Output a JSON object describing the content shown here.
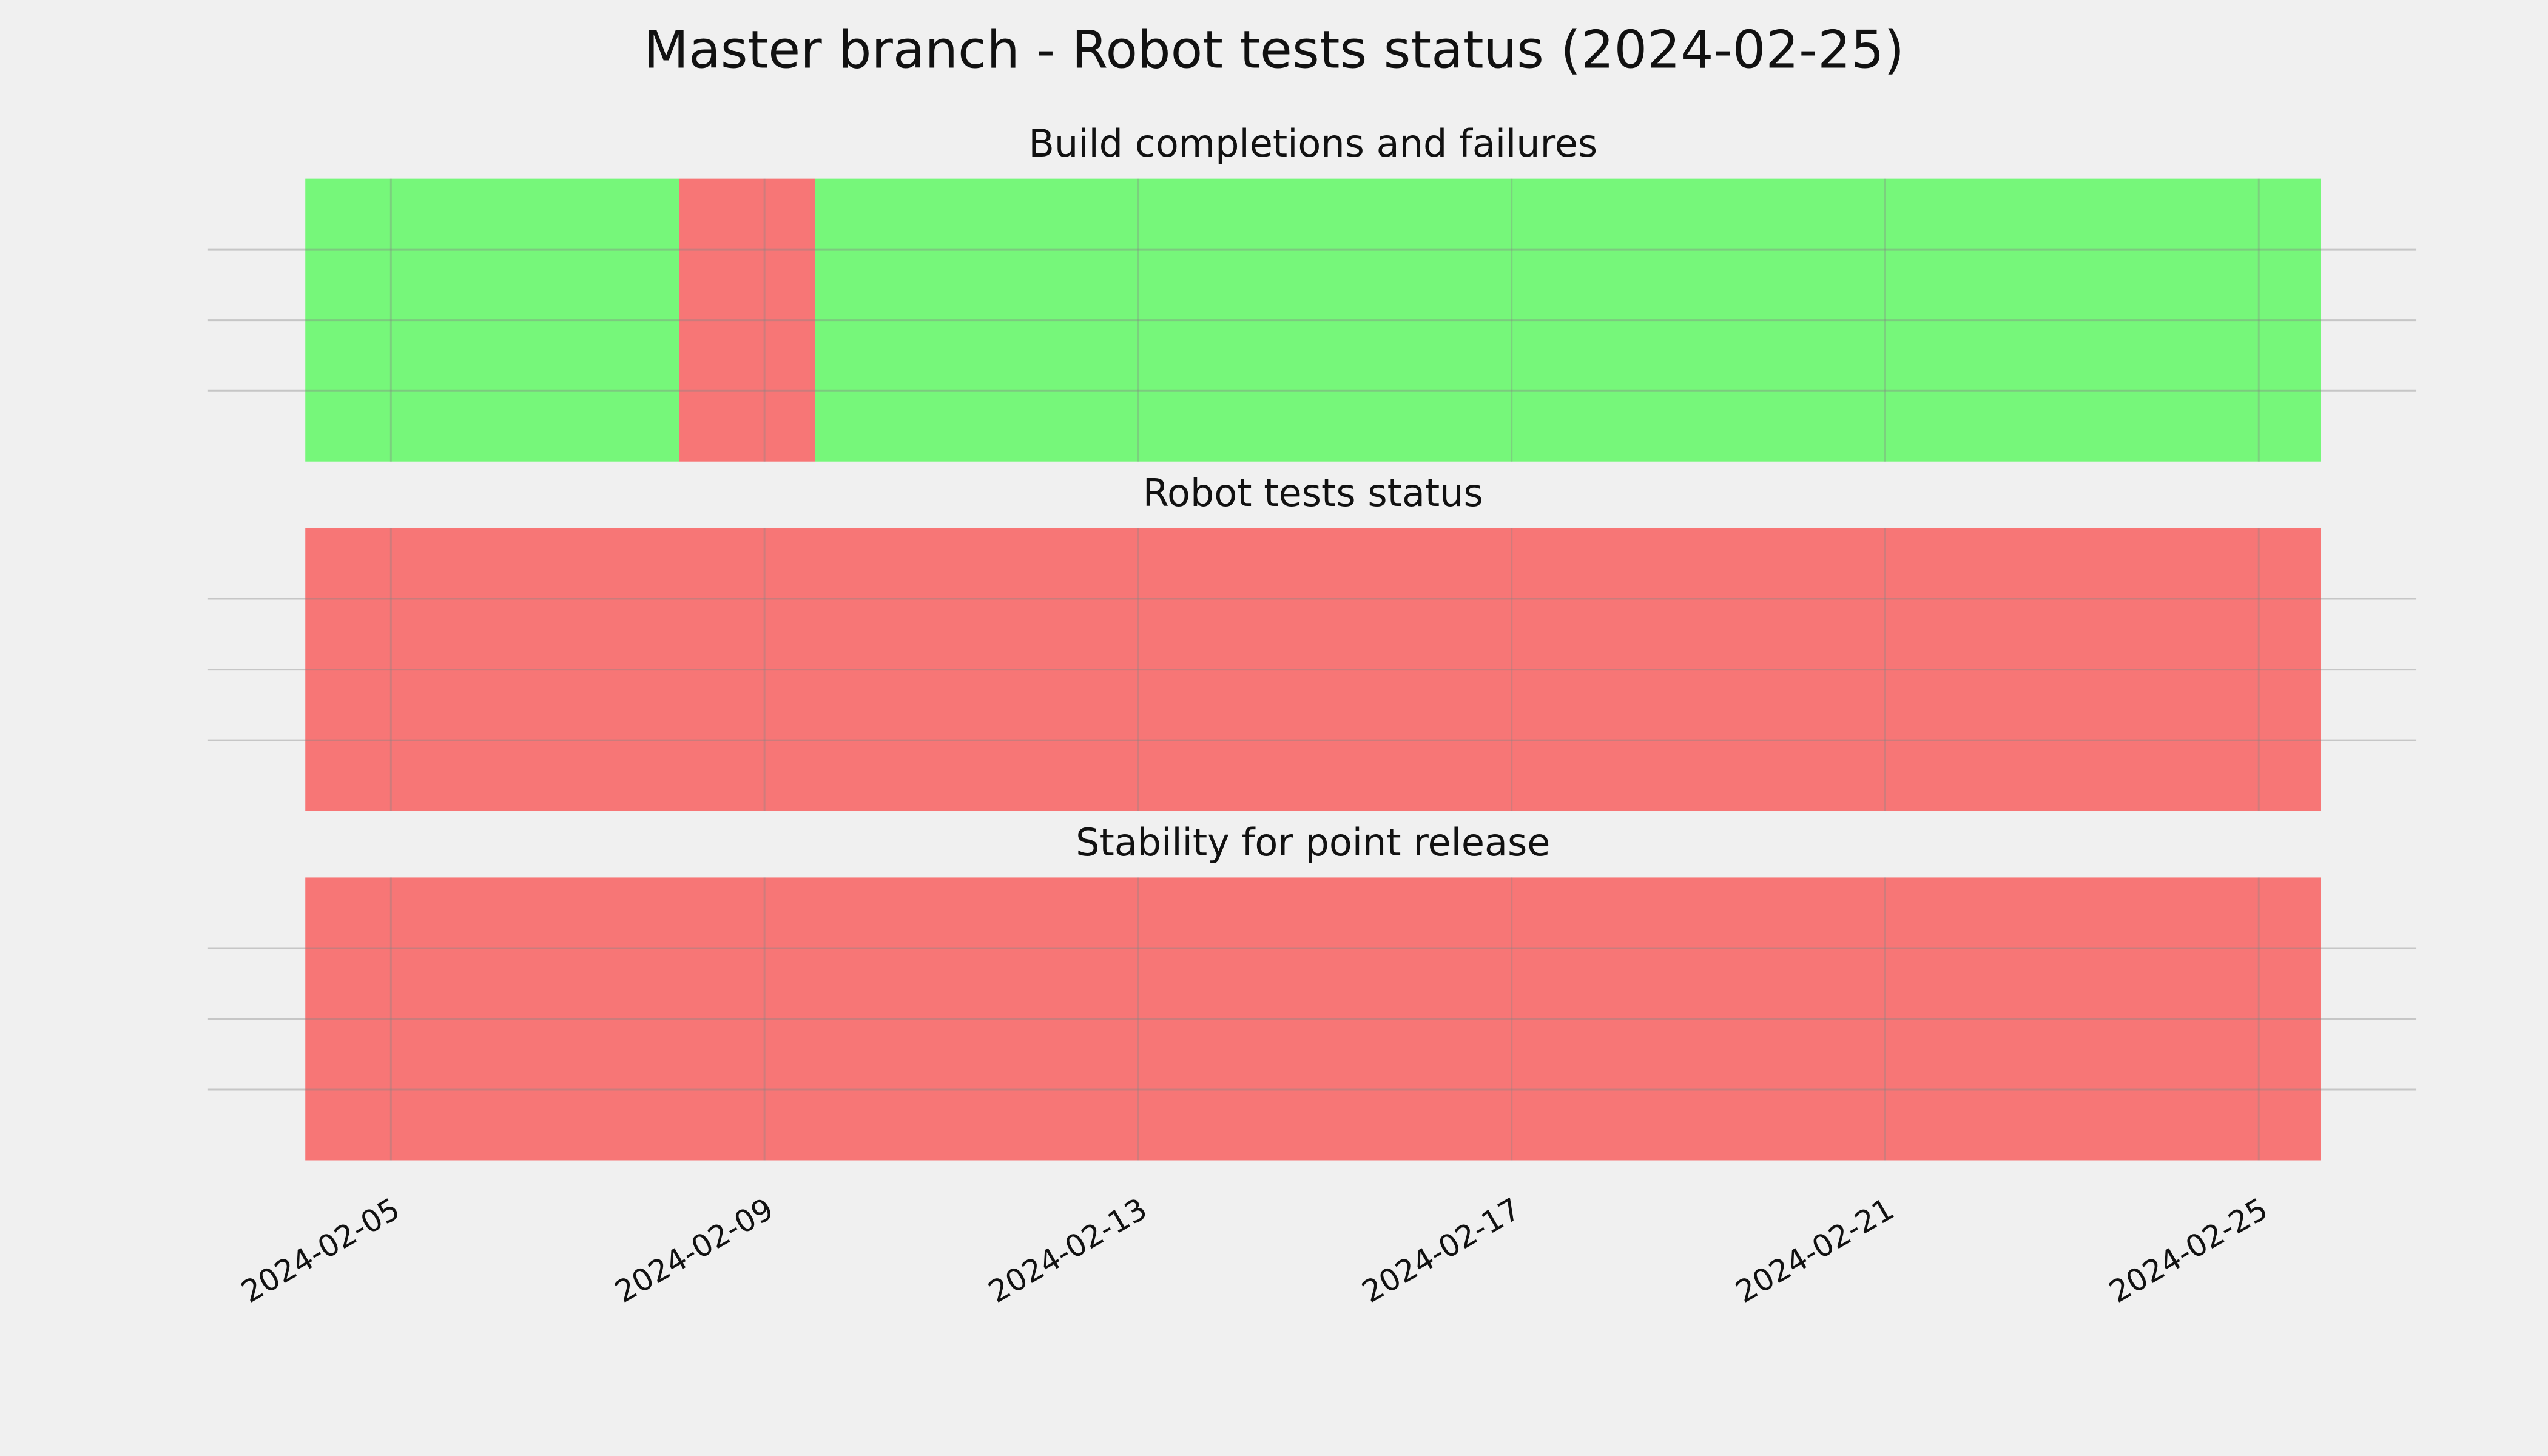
{
  "title": "Master branch - Robot tests status (2024-02-25)",
  "chart_data": [
    {
      "type": "timeline",
      "title": "Build completions and failures",
      "segments": [
        {
          "start": "2024-02-04T02:00",
          "end": "2024-02-08T02:00",
          "color": "#76f77a"
        },
        {
          "start": "2024-02-08T02:00",
          "end": "2024-02-09T13:00",
          "color": "#f77676"
        },
        {
          "start": "2024-02-09T13:00",
          "end": "2024-02-25T16:00",
          "color": "#76f77a"
        }
      ],
      "xlim": [
        "2024-02-03T01:00",
        "2024-02-26T16:30"
      ],
      "xticks": [
        "2024-02-05",
        "2024-02-09",
        "2024-02-13",
        "2024-02-17",
        "2024-02-21",
        "2024-02-25"
      ],
      "ylim": [
        0,
        1
      ],
      "yticks": [
        0.25,
        0.5,
        0.75
      ],
      "grid": true
    },
    {
      "type": "timeline",
      "title": "Robot tests status",
      "segments": [
        {
          "start": "2024-02-04T02:00",
          "end": "2024-02-25T16:00",
          "color": "#f77676"
        }
      ],
      "xlim": [
        "2024-02-03T01:00",
        "2024-02-26T16:30"
      ],
      "xticks": [
        "2024-02-05",
        "2024-02-09",
        "2024-02-13",
        "2024-02-17",
        "2024-02-21",
        "2024-02-25"
      ],
      "ylim": [
        0,
        1
      ],
      "yticks": [
        0.25,
        0.5,
        0.75
      ],
      "grid": true
    },
    {
      "type": "timeline",
      "title": "Stability for point release",
      "segments": [
        {
          "start": "2024-02-04T02:00",
          "end": "2024-02-25T16:00",
          "color": "#f77676"
        }
      ],
      "xlim": [
        "2024-02-03T01:00",
        "2024-02-26T16:30"
      ],
      "xticks": [
        "2024-02-05",
        "2024-02-09",
        "2024-02-13",
        "2024-02-17",
        "2024-02-21",
        "2024-02-25"
      ],
      "ylim": [
        0,
        1
      ],
      "yticks": [
        0.25,
        0.5,
        0.75
      ],
      "grid": true
    }
  ]
}
